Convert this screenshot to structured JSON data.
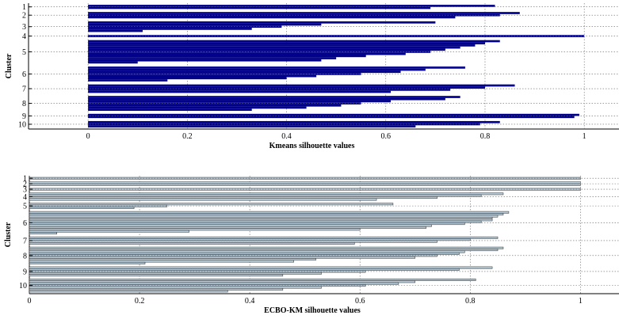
{
  "chart_data": [
    {
      "type": "bar",
      "orientation": "horizontal",
      "title": "",
      "xlabel": "Kmeans silhouette values",
      "ylabel": "Cluster",
      "xlim": [
        -0.12,
        1.07
      ],
      "xticks": [
        "0",
        "0.2",
        "0.4",
        "0.6",
        "0.8",
        "1"
      ],
      "grid": true,
      "bar_color": "#00008b",
      "clusters": [
        {
          "label": "1",
          "values": [
            0.82,
            0.69
          ]
        },
        {
          "label": "2",
          "values": [
            0.87,
            0.83,
            0.74
          ]
        },
        {
          "label": "3",
          "values": [
            0.7,
            0.47,
            0.39,
            0.33,
            0.11
          ]
        },
        {
          "label": "4",
          "values": [
            1.0
          ]
        },
        {
          "label": "5",
          "values": [
            0.83,
            0.8,
            0.78,
            0.75,
            0.72,
            0.69,
            0.64,
            0.56,
            0.5,
            0.47,
            0.1
          ]
        },
        {
          "label": "6",
          "values": [
            0.76,
            0.68,
            0.63,
            0.55,
            0.46,
            0.4,
            0.16
          ]
        },
        {
          "label": "7",
          "values": [
            0.86,
            0.8,
            0.73,
            0.61
          ]
        },
        {
          "label": "8",
          "values": [
            0.75,
            0.72,
            0.61,
            0.55,
            0.51,
            0.44,
            0.33
          ]
        },
        {
          "label": "9",
          "values": [
            0.99,
            0.98
          ]
        },
        {
          "label": "10",
          "values": [
            0.83,
            0.79,
            0.66
          ]
        }
      ]
    },
    {
      "type": "bar",
      "orientation": "horizontal",
      "title": "",
      "xlabel": "ECBO-KM silhouette values",
      "ylabel": "Cluster",
      "xlim": [
        0,
        1.07
      ],
      "xticks": [
        "0",
        "0.2",
        "0.4",
        "0.6",
        "0.8",
        "1"
      ],
      "grid": true,
      "bar_color": "#b7cbd8",
      "clusters": [
        {
          "label": "1",
          "values": [
            1.0
          ]
        },
        {
          "label": "2",
          "values": [
            1.0,
            1.0
          ]
        },
        {
          "label": "3",
          "values": [
            1.0
          ]
        },
        {
          "label": "4",
          "values": [
            0.86,
            0.82,
            0.74,
            0.63
          ]
        },
        {
          "label": "5",
          "values": [
            0.66,
            0.25,
            0.19
          ]
        },
        {
          "label": "6",
          "values": [
            0.87,
            0.86,
            0.85,
            0.84,
            0.84,
            0.82,
            0.79,
            0.73,
            0.72,
            0.6,
            0.29,
            0.05
          ]
        },
        {
          "label": "7",
          "values": [
            0.85,
            0.8,
            0.74,
            0.59
          ]
        },
        {
          "label": "8",
          "values": [
            0.86,
            0.85,
            0.79,
            0.78,
            0.74,
            0.7,
            0.52,
            0.48,
            0.21
          ]
        },
        {
          "label": "9",
          "values": [
            0.84,
            0.78,
            0.61,
            0.53,
            0.46
          ]
        },
        {
          "label": "10",
          "values": [
            0.81,
            0.7,
            0.67,
            0.61,
            0.53,
            0.46,
            0.36
          ]
        }
      ]
    }
  ]
}
